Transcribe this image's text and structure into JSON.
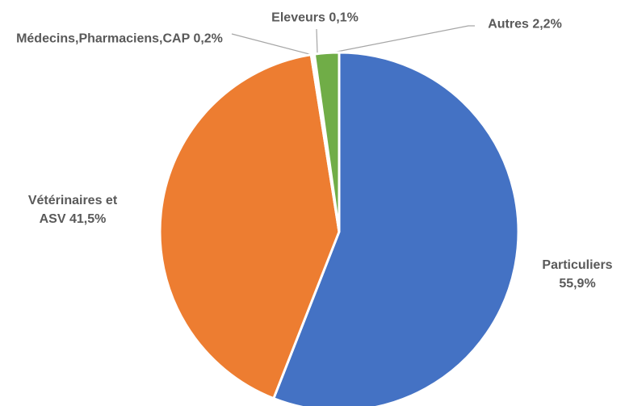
{
  "chart_data": {
    "type": "pie",
    "categories": [
      "Particuliers",
      "Vétérinaires et ASV",
      "Médecins,Pharmaciens,CAP",
      "Eleveurs",
      "Autres"
    ],
    "values": [
      55.9,
      41.5,
      0.2,
      0.1,
      2.2
    ],
    "value_labels": [
      "55,9%",
      "41,5%",
      "0,2%",
      "0,1%",
      "2,2%"
    ],
    "colors": [
      "#4472c4",
      "#ed7d31",
      "#a5a5a5",
      "#ffc000",
      "#70ad47"
    ]
  }
}
